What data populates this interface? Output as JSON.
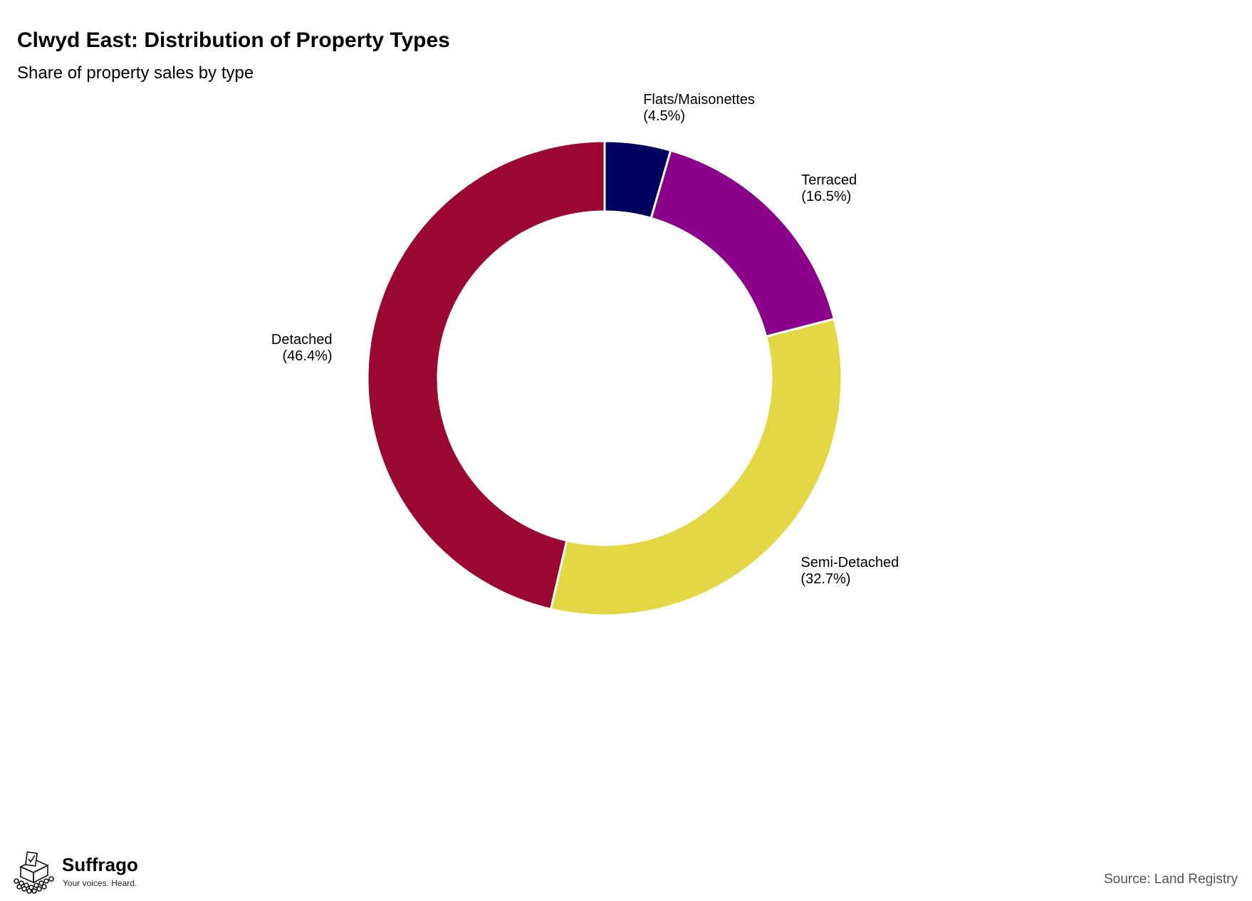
{
  "header": {
    "title": "Clwyd East: Distribution of Property Types",
    "subtitle": "Share of property sales by type"
  },
  "chart_data": {
    "type": "pie",
    "donut": true,
    "title": "Clwyd East: Distribution of Property Types",
    "subtitle": "Share of property sales by type",
    "categories": [
      "Flats/Maisonettes",
      "Terraced",
      "Semi-Detached",
      "Detached"
    ],
    "values": [
      4.5,
      16.5,
      32.7,
      46.4
    ],
    "value_labels": [
      "(4.5%)",
      "(16.5%)",
      "(32.7%)",
      "(46.4%)"
    ],
    "colors": [
      "#00005e",
      "#8b008b",
      "#e3d843",
      "#9a0832"
    ],
    "start_angle": "12 o'clock",
    "direction": "clockwise",
    "legend": "none (slice labels)"
  },
  "footer": {
    "logo_name": "Suffrago",
    "logo_tagline": "Your voices. Heard.",
    "logo_icon": "ballot-box-icon",
    "source": "Source: Land Registry"
  }
}
